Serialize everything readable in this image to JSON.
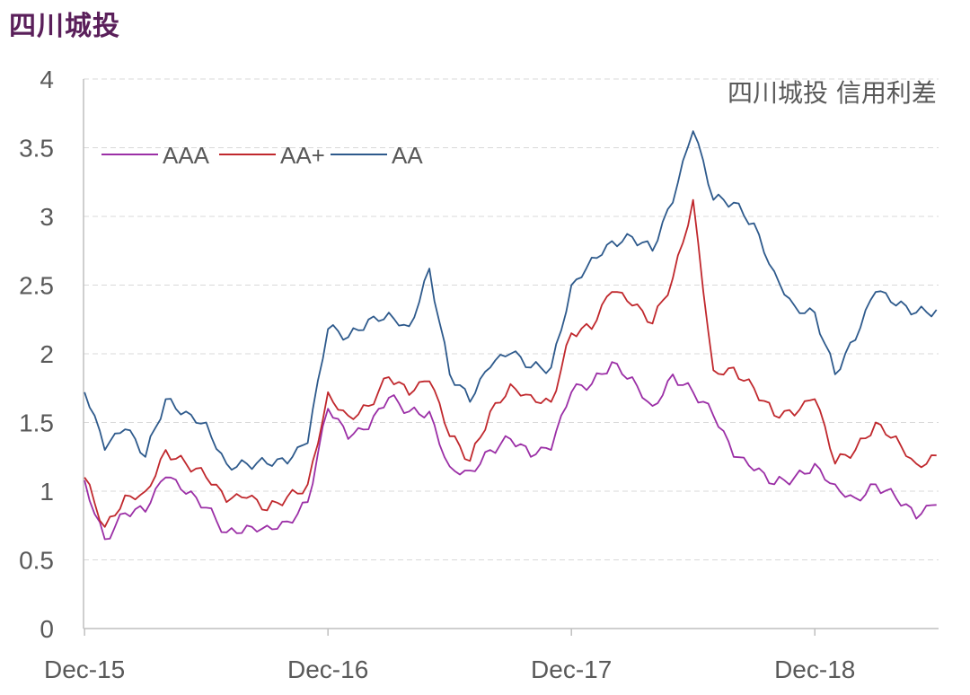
{
  "page": {
    "title": "四川城投"
  },
  "chart_data": {
    "type": "line",
    "title": "四川城投 信用利差",
    "xlabel": "",
    "ylabel": "",
    "ylim": [
      0,
      4
    ],
    "yticks": [
      "0",
      "0.5",
      "1",
      "1.5",
      "2",
      "2.5",
      "3",
      "3.5",
      "4"
    ],
    "xlim": [
      "2015-12",
      "2019-06"
    ],
    "xticks": [
      {
        "date": "2015-12",
        "label": "Dec-15"
      },
      {
        "date": "2016-12",
        "label": "Dec-16"
      },
      {
        "date": "2017-12",
        "label": "Dec-17"
      },
      {
        "date": "2018-12",
        "label": "Dec-18"
      }
    ],
    "grid": "horizontal-dashed",
    "legend_position": "top-left",
    "series": [
      {
        "name": "AAA",
        "color": "#9b2fa6",
        "points": [
          [
            "2015-12",
            1.08
          ],
          [
            "2016-01",
            0.65
          ],
          [
            "2016-02",
            0.84
          ],
          [
            "2016-03",
            0.85
          ],
          [
            "2016-04",
            1.1
          ],
          [
            "2016-05",
            0.98
          ],
          [
            "2016-06",
            0.88
          ],
          [
            "2016-07",
            0.7
          ],
          [
            "2016-08",
            0.75
          ],
          [
            "2016-09",
            0.75
          ],
          [
            "2016-10",
            0.78
          ],
          [
            "2016-11",
            0.92
          ],
          [
            "2016-12",
            1.6
          ],
          [
            "2017-01",
            1.38
          ],
          [
            "2017-02",
            1.45
          ],
          [
            "2017-03",
            1.68
          ],
          [
            "2017-04",
            1.58
          ],
          [
            "2017-05",
            1.58
          ],
          [
            "2017-06",
            1.18
          ],
          [
            "2017-07",
            1.15
          ],
          [
            "2017-08",
            1.3
          ],
          [
            "2017-09",
            1.38
          ],
          [
            "2017-10",
            1.25
          ],
          [
            "2017-11",
            1.3
          ],
          [
            "2017-12",
            1.72
          ],
          [
            "2018-01",
            1.78
          ],
          [
            "2018-02",
            1.94
          ],
          [
            "2018-03",
            1.83
          ],
          [
            "2018-04",
            1.62
          ],
          [
            "2018-05",
            1.85
          ],
          [
            "2018-06",
            1.72
          ],
          [
            "2018-07",
            1.55
          ],
          [
            "2018-08",
            1.25
          ],
          [
            "2018-09",
            1.15
          ],
          [
            "2018-10",
            1.05
          ],
          [
            "2018-11",
            1.1
          ],
          [
            "2018-12",
            1.2
          ],
          [
            "2019-01",
            1.05
          ],
          [
            "2019-02",
            0.95
          ],
          [
            "2019-03",
            1.05
          ],
          [
            "2019-04",
            0.95
          ],
          [
            "2019-05",
            0.8
          ],
          [
            "2019-06",
            0.9
          ]
        ]
      },
      {
        "name": "AA+",
        "color": "#c0282d",
        "points": [
          [
            "2015-12",
            1.1
          ],
          [
            "2016-01",
            0.74
          ],
          [
            "2016-02",
            0.97
          ],
          [
            "2016-03",
            1.0
          ],
          [
            "2016-04",
            1.3
          ],
          [
            "2016-05",
            1.2
          ],
          [
            "2016-06",
            1.1
          ],
          [
            "2016-07",
            0.92
          ],
          [
            "2016-08",
            0.95
          ],
          [
            "2016-09",
            0.86
          ],
          [
            "2016-10",
            0.96
          ],
          [
            "2016-11",
            1.05
          ],
          [
            "2016-12",
            1.72
          ],
          [
            "2017-01",
            1.55
          ],
          [
            "2017-02",
            1.62
          ],
          [
            "2017-03",
            1.83
          ],
          [
            "2017-04",
            1.7
          ],
          [
            "2017-05",
            1.8
          ],
          [
            "2017-06",
            1.4
          ],
          [
            "2017-07",
            1.22
          ],
          [
            "2017-08",
            1.58
          ],
          [
            "2017-09",
            1.78
          ],
          [
            "2017-10",
            1.7
          ],
          [
            "2017-11",
            1.65
          ],
          [
            "2017-12",
            2.15
          ],
          [
            "2018-01",
            2.18
          ],
          [
            "2018-02",
            2.45
          ],
          [
            "2018-03",
            2.35
          ],
          [
            "2018-04",
            2.22
          ],
          [
            "2018-05",
            2.55
          ],
          [
            "2018-06",
            3.12
          ],
          [
            "2018-07",
            1.88
          ],
          [
            "2018-08",
            1.9
          ],
          [
            "2018-09",
            1.75
          ],
          [
            "2018-10",
            1.55
          ],
          [
            "2018-11",
            1.55
          ],
          [
            "2018-12",
            1.67
          ],
          [
            "2019-01",
            1.2
          ],
          [
            "2019-02",
            1.3
          ],
          [
            "2019-03",
            1.5
          ],
          [
            "2019-04",
            1.4
          ],
          [
            "2019-05",
            1.2
          ],
          [
            "2019-06",
            1.26
          ]
        ]
      },
      {
        "name": "AA",
        "color": "#2e5a8c",
        "points": [
          [
            "2015-12",
            1.72
          ],
          [
            "2016-01",
            1.3
          ],
          [
            "2016-02",
            1.45
          ],
          [
            "2016-03",
            1.25
          ],
          [
            "2016-04",
            1.67
          ],
          [
            "2016-05",
            1.58
          ],
          [
            "2016-06",
            1.5
          ],
          [
            "2016-07",
            1.2
          ],
          [
            "2016-08",
            1.2
          ],
          [
            "2016-09",
            1.2
          ],
          [
            "2016-10",
            1.2
          ],
          [
            "2016-11",
            1.35
          ],
          [
            "2016-12",
            2.18
          ],
          [
            "2017-01",
            2.12
          ],
          [
            "2017-02",
            2.25
          ],
          [
            "2017-03",
            2.3
          ],
          [
            "2017-04",
            2.2
          ],
          [
            "2017-05",
            2.62
          ],
          [
            "2017-06",
            1.85
          ],
          [
            "2017-07",
            1.65
          ],
          [
            "2017-08",
            1.9
          ],
          [
            "2017-09",
            2.0
          ],
          [
            "2017-10",
            1.9
          ],
          [
            "2017-11",
            1.9
          ],
          [
            "2017-12",
            2.5
          ],
          [
            "2018-01",
            2.7
          ],
          [
            "2018-02",
            2.82
          ],
          [
            "2018-03",
            2.85
          ],
          [
            "2018-04",
            2.75
          ],
          [
            "2018-05",
            3.1
          ],
          [
            "2018-06",
            3.62
          ],
          [
            "2018-07",
            3.12
          ],
          [
            "2018-08",
            3.1
          ],
          [
            "2018-09",
            2.95
          ],
          [
            "2018-10",
            2.6
          ],
          [
            "2018-11",
            2.35
          ],
          [
            "2018-12",
            2.3
          ],
          [
            "2019-01",
            1.85
          ],
          [
            "2019-02",
            2.1
          ],
          [
            "2019-03",
            2.45
          ],
          [
            "2019-04",
            2.35
          ],
          [
            "2019-05",
            2.3
          ],
          [
            "2019-06",
            2.32
          ]
        ]
      }
    ]
  }
}
